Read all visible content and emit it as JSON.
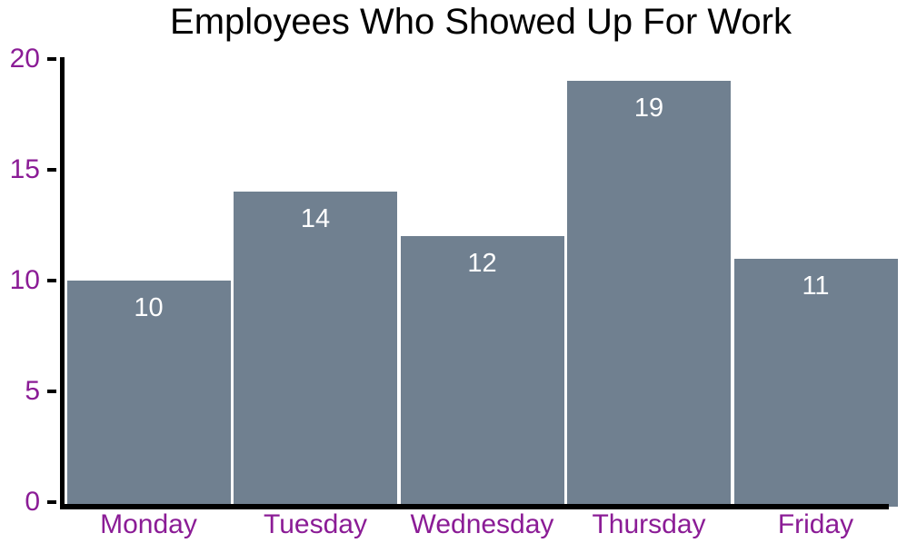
{
  "title": "Employees Who Showed Up For Work",
  "colors": {
    "bar": "#708090",
    "axis": "#000000",
    "axis_tick_label": "#8B1C96",
    "bar_value_label": "#ffffff",
    "title": "#000000",
    "background": "#ffffff"
  },
  "chart_data": {
    "type": "bar",
    "title": "Employees Who Showed Up For Work",
    "categories": [
      "Monday",
      "Tuesday",
      "Wednesday",
      "Thursday",
      "Friday"
    ],
    "values": [
      10,
      14,
      12,
      19,
      11
    ],
    "bar_value_labels": [
      "10",
      "14",
      "12",
      "19",
      "11"
    ],
    "xlabel": "",
    "ylabel": "",
    "ylim": [
      0,
      20
    ],
    "yticks": [
      0,
      5,
      10,
      15,
      20
    ],
    "ytick_labels": [
      "0",
      "5",
      "10",
      "15",
      "20"
    ],
    "grid": false,
    "legend_position": "none",
    "bar_labels_inside": true
  }
}
